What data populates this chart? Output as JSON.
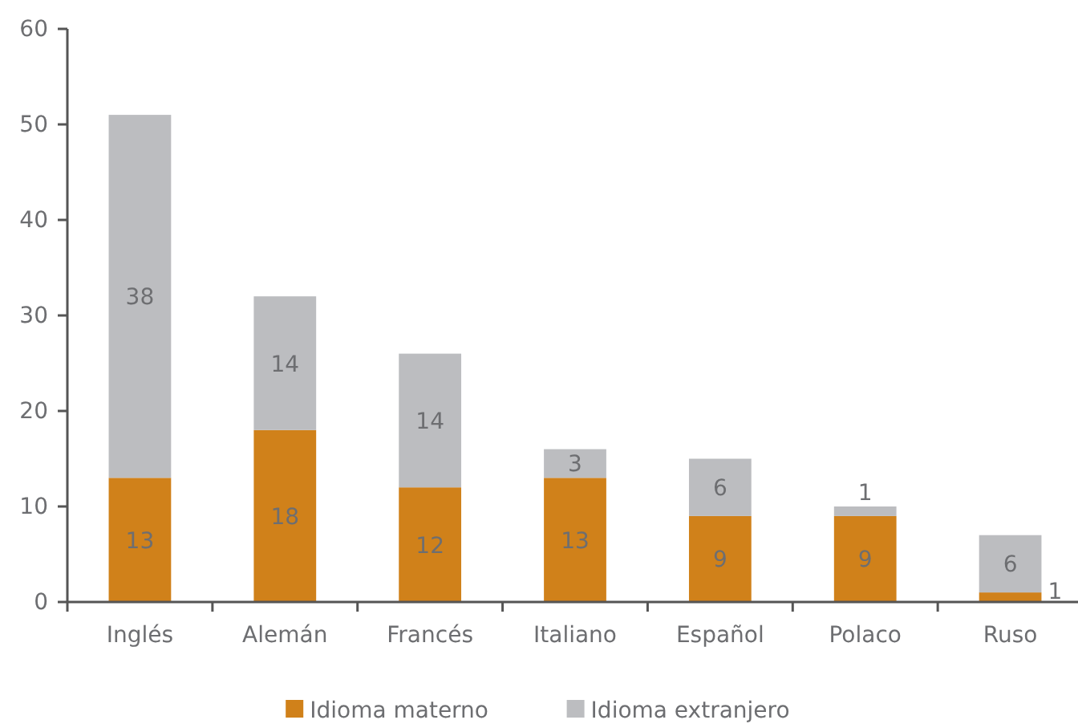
{
  "chart_data": {
    "type": "bar",
    "stacked": true,
    "categories": [
      "Inglés",
      "Alemán",
      "Francés",
      "Italiano",
      "Español",
      "Polaco",
      "Ruso"
    ],
    "series": [
      {
        "name": "Idioma materno",
        "color": "#d0811a",
        "values": [
          13,
          18,
          12,
          13,
          9,
          9,
          1
        ]
      },
      {
        "name": "Idioma extranjero",
        "color": "#bcbdc0",
        "values": [
          38,
          14,
          14,
          3,
          6,
          1,
          6
        ]
      }
    ],
    "ylim": [
      0,
      60
    ],
    "yticks": [
      0,
      10,
      20,
      30,
      40,
      50,
      60
    ],
    "data_labels": true,
    "grid": false,
    "legend": "bottom"
  }
}
